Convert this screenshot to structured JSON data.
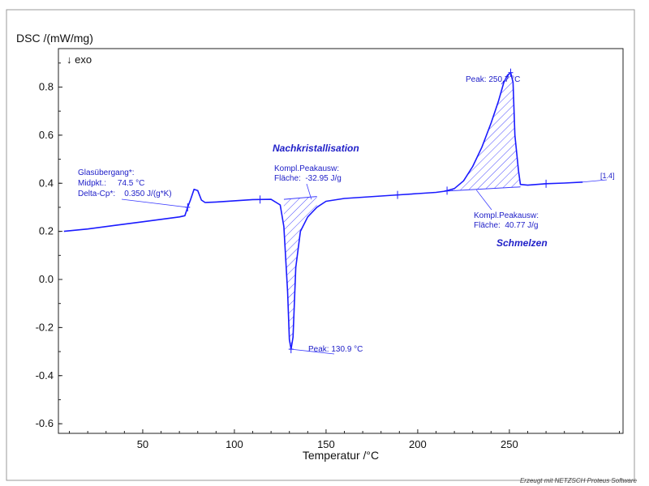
{
  "chart_data": {
    "type": "line",
    "title": "",
    "xlabel": "Temperatur /°C",
    "ylabel": "DSC /(mW/mg)",
    "exo_label": "↓ exo",
    "xlim": [
      4,
      312
    ],
    "ylim": [
      -0.64,
      0.96
    ],
    "x_ticks": [
      50,
      100,
      150,
      200,
      250
    ],
    "y_ticks": [
      -0.6,
      -0.4,
      -0.2,
      0.0,
      0.2,
      0.4,
      0.6,
      0.8
    ],
    "y_tick_labels": [
      "-0.6",
      "-0.4",
      "-0.2",
      "0.0",
      "0.2",
      "0.4",
      "0.6",
      "0.8"
    ],
    "grid": false,
    "series": [
      {
        "name": "",
        "color": "#1a1aff",
        "x": [
          7,
          20,
          35,
          50,
          60,
          70,
          73,
          74.5,
          76,
          78,
          80,
          82,
          84,
          90,
          100,
          110,
          120,
          125,
          127,
          129,
          130,
          130.9,
          132,
          133.5,
          136,
          140,
          145,
          150,
          160,
          170,
          180,
          190,
          200,
          210,
          215,
          220,
          225,
          230,
          235,
          240,
          244,
          247,
          249,
          250.7,
          252,
          253,
          255,
          256,
          260,
          265,
          270,
          280,
          290
        ],
        "y": [
          0.2,
          0.21,
          0.225,
          0.24,
          0.25,
          0.26,
          0.265,
          0.3,
          0.33,
          0.375,
          0.37,
          0.33,
          0.32,
          0.322,
          0.327,
          0.332,
          0.333,
          0.31,
          0.22,
          -0.05,
          -0.25,
          -0.29,
          -0.24,
          0.05,
          0.2,
          0.26,
          0.3,
          0.325,
          0.337,
          0.342,
          0.347,
          0.352,
          0.357,
          0.362,
          0.367,
          0.378,
          0.41,
          0.47,
          0.55,
          0.65,
          0.74,
          0.82,
          0.85,
          0.86,
          0.82,
          0.6,
          0.45,
          0.395,
          0.392,
          0.395,
          0.398,
          0.401,
          0.405
        ]
      }
    ],
    "hatched_regions": [
      {
        "name": "Nachkristallisation",
        "x_range": [
          127,
          145
        ],
        "baseline": [
          [
            127,
            0.333
          ],
          [
            145,
            0.345
          ]
        ]
      },
      {
        "name": "Schmelzen",
        "x_range": [
          215,
          256
        ],
        "baseline": [
          [
            215,
            0.367
          ],
          [
            256,
            0.385
          ]
        ]
      }
    ],
    "markers_x": [
      74.5,
      114,
      130.9,
      189,
      216,
      250.7,
      270
    ],
    "annotations": {
      "glass": {
        "lines": [
          "Glasübergang*:",
          "Midpkt.:     74.5 °C",
          "Delta-Cp*:    0.350 J/(g*K)"
        ]
      },
      "cryst_title": "Nachkristallisation",
      "cryst_area": [
        "Kompl.Peakausw:",
        "Fläche:  -32.95 J/g"
      ],
      "cryst_peak": "Peak: 130.9 °C",
      "melt_peak": "Peak: 250,7 °C",
      "melt_area": [
        "Kompl.Peakausw:",
        "Fläche:  40.77 J/g"
      ],
      "melt_title": "Schmelzen",
      "curve_tag": "[1.4]"
    },
    "footer": "Erzeugt mit NETZSCH Proteus Software"
  }
}
